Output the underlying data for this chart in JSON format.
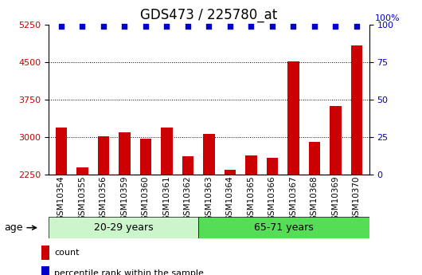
{
  "title": "GDS473 / 225780_at",
  "categories": [
    "GSM10354",
    "GSM10355",
    "GSM10356",
    "GSM10359",
    "GSM10360",
    "GSM10361",
    "GSM10362",
    "GSM10363",
    "GSM10364",
    "GSM10365",
    "GSM10366",
    "GSM10367",
    "GSM10368",
    "GSM10369",
    "GSM10370"
  ],
  "counts": [
    3200,
    2390,
    3020,
    3100,
    2970,
    3200,
    2620,
    3060,
    2350,
    2630,
    2580,
    4520,
    2900,
    3620,
    4830
  ],
  "ylim_left": [
    2250,
    5250
  ],
  "ylim_right": [
    0,
    100
  ],
  "yticks_left": [
    2250,
    3000,
    3750,
    4500,
    5250
  ],
  "yticks_right": [
    0,
    25,
    50,
    75,
    100
  ],
  "grid_lines": [
    3000,
    3750,
    4500
  ],
  "group1_label": "20-29 years",
  "group2_label": "65-71 years",
  "group1_count": 7,
  "group2_count": 8,
  "bar_color": "#cc0000",
  "dot_color": "#0000cc",
  "group1_bg": "#ccf5cc",
  "group2_bg": "#55dd55",
  "tick_bg": "#cccccc",
  "tick_edge": "#999999",
  "age_label": "age",
  "legend_count": "count",
  "legend_percentile": "percentile rank within the sample",
  "left_axis_color": "#cc0000",
  "right_axis_color": "#0000cc",
  "title_fontsize": 12,
  "tick_fontsize": 8,
  "bar_fontsize": 7.5,
  "group_fontsize": 9,
  "legend_fontsize": 8,
  "right_label": "100%"
}
